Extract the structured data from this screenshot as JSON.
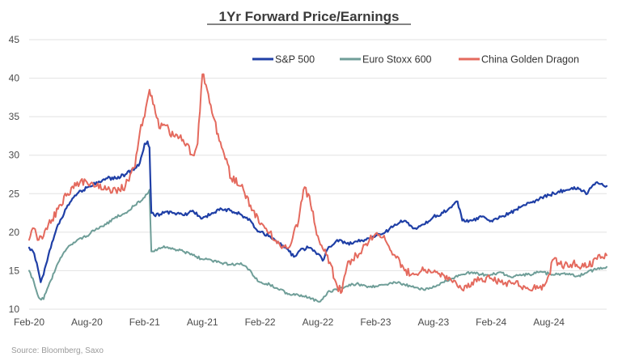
{
  "chart_data": {
    "type": "line",
    "title": "1Yr Forward Price/Earnings",
    "source": "Source: Bloomberg, Saxo",
    "xlabel": "",
    "ylabel": "",
    "ylim": [
      10,
      45
    ],
    "yticks": [
      "10",
      "15",
      "20",
      "25",
      "30",
      "35",
      "40",
      "45"
    ],
    "xticks": [
      "Feb-20",
      "Aug-20",
      "Feb-21",
      "Aug-21",
      "Feb-22",
      "Aug-22",
      "Feb-23",
      "Aug-23",
      "Feb-24",
      "Aug-24"
    ],
    "xlim_months": [
      0,
      60
    ],
    "grid": "horizontal",
    "legend_position": "top-right",
    "series": [
      {
        "name": "S&P 500",
        "color": "#1f3fa6",
        "points": [
          [
            0,
            18
          ],
          [
            0.4,
            17.5
          ],
          [
            0.8,
            16
          ],
          [
            1.2,
            13.5
          ],
          [
            1.5,
            14.5
          ],
          [
            2,
            17
          ],
          [
            2.5,
            19
          ],
          [
            3,
            21
          ],
          [
            3.5,
            22
          ],
          [
            4,
            23.5
          ],
          [
            5,
            25
          ],
          [
            6,
            25.8
          ],
          [
            7,
            26.5
          ],
          [
            8,
            27
          ],
          [
            9,
            27
          ],
          [
            10,
            27.5
          ],
          [
            11,
            28.3
          ],
          [
            11.5,
            29
          ],
          [
            12,
            31.5
          ],
          [
            12.3,
            31.8
          ],
          [
            12.5,
            31
          ],
          [
            12.7,
            22.5
          ],
          [
            13,
            22.2
          ],
          [
            14,
            22.5
          ],
          [
            15,
            22.5
          ],
          [
            16,
            22.2
          ],
          [
            17,
            22.8
          ],
          [
            18,
            21.8
          ],
          [
            19,
            22.5
          ],
          [
            20,
            23
          ],
          [
            21,
            22.8
          ],
          [
            22,
            22.3
          ],
          [
            23,
            21.5
          ],
          [
            23.5,
            20.5
          ],
          [
            24,
            20
          ],
          [
            25,
            19.5
          ],
          [
            26,
            18.5
          ],
          [
            27,
            17.5
          ],
          [
            27.5,
            16.8
          ],
          [
            28,
            17.5
          ],
          [
            29,
            18
          ],
          [
            30,
            17.2
          ],
          [
            30.5,
            16.3
          ],
          [
            31,
            17.8
          ],
          [
            32,
            19
          ],
          [
            33,
            18.5
          ],
          [
            34,
            18.8
          ],
          [
            35,
            19
          ],
          [
            36,
            19.5
          ],
          [
            37,
            20
          ],
          [
            38,
            21
          ],
          [
            39,
            21.5
          ],
          [
            40,
            20.5
          ],
          [
            41,
            21
          ],
          [
            42,
            22
          ],
          [
            43,
            22.5
          ],
          [
            44,
            23.5
          ],
          [
            44.5,
            24
          ],
          [
            45,
            21.5
          ],
          [
            46,
            21.5
          ],
          [
            47,
            22
          ],
          [
            48,
            21.5
          ],
          [
            49,
            22
          ],
          [
            50,
            22.5
          ],
          [
            51,
            23.2
          ],
          [
            52,
            23.8
          ],
          [
            53,
            24.3
          ],
          [
            54,
            24.8
          ],
          [
            55,
            25.3
          ],
          [
            56,
            25.5
          ],
          [
            57,
            25.8
          ],
          [
            58,
            25
          ],
          [
            58.5,
            26
          ],
          [
            59,
            26.5
          ],
          [
            59.5,
            26.3
          ],
          [
            60,
            26
          ]
        ]
      },
      {
        "name": "Euro Stoxx 600",
        "color": "#6f9e98",
        "points": [
          [
            0,
            15
          ],
          [
            0.5,
            13.5
          ],
          [
            1,
            11.5
          ],
          [
            1.5,
            11.3
          ],
          [
            2,
            13
          ],
          [
            3,
            16
          ],
          [
            4,
            18
          ],
          [
            5,
            19
          ],
          [
            6,
            19.5
          ],
          [
            7,
            20.5
          ],
          [
            8,
            21
          ],
          [
            9,
            22
          ],
          [
            10,
            22.5
          ],
          [
            11,
            23.5
          ],
          [
            12,
            24.5
          ],
          [
            12.5,
            25.5
          ],
          [
            12.7,
            17.5
          ],
          [
            13,
            17.5
          ],
          [
            14,
            18.2
          ],
          [
            15,
            17.8
          ],
          [
            16,
            17.5
          ],
          [
            17,
            17
          ],
          [
            18,
            16.5
          ],
          [
            19,
            16.3
          ],
          [
            20,
            16
          ],
          [
            21,
            15.8
          ],
          [
            22,
            16
          ],
          [
            23,
            15
          ],
          [
            23.5,
            14
          ],
          [
            24,
            13.5
          ],
          [
            25,
            13.2
          ],
          [
            26,
            12.5
          ],
          [
            27,
            12
          ],
          [
            28,
            11.8
          ],
          [
            29,
            11.5
          ],
          [
            30,
            11
          ],
          [
            30.5,
            11.3
          ],
          [
            31,
            12.2
          ],
          [
            32,
            12.5
          ],
          [
            33,
            13
          ],
          [
            34,
            13.3
          ],
          [
            35,
            13
          ],
          [
            36,
            13
          ],
          [
            37,
            13.2
          ],
          [
            38,
            13.5
          ],
          [
            39,
            13.2
          ],
          [
            40,
            12.8
          ],
          [
            41,
            12.5
          ],
          [
            42,
            13
          ],
          [
            43,
            13.5
          ],
          [
            44,
            14
          ],
          [
            45,
            14.5
          ],
          [
            46,
            14.8
          ],
          [
            47,
            14.5
          ],
          [
            48,
            14.5
          ],
          [
            49,
            14.8
          ],
          [
            50,
            14.2
          ],
          [
            51,
            14.5
          ],
          [
            52,
            14.5
          ],
          [
            53,
            14.8
          ],
          [
            54,
            14.6
          ],
          [
            55,
            14.6
          ],
          [
            56,
            14.5
          ],
          [
            57,
            14.3
          ],
          [
            58,
            14.8
          ],
          [
            59,
            15.2
          ],
          [
            60,
            15.5
          ]
        ]
      },
      {
        "name": "China Golden Dragon",
        "color": "#e46a5e",
        "points": [
          [
            0,
            19
          ],
          [
            0.5,
            20.5
          ],
          [
            1,
            19
          ],
          [
            1.5,
            19.5
          ],
          [
            2,
            21
          ],
          [
            3,
            23
          ],
          [
            4,
            25
          ],
          [
            5,
            26.5
          ],
          [
            6,
            26.5
          ],
          [
            7,
            26
          ],
          [
            8,
            25.5
          ],
          [
            9,
            25.5
          ],
          [
            10,
            26
          ],
          [
            10.5,
            27.5
          ],
          [
            11,
            28.5
          ],
          [
            11.5,
            33
          ],
          [
            12,
            35
          ],
          [
            12.5,
            38.5
          ],
          [
            13,
            36.5
          ],
          [
            13.5,
            33.5
          ],
          [
            14,
            34
          ],
          [
            15,
            32.5
          ],
          [
            16,
            32
          ],
          [
            17,
            30
          ],
          [
            17.5,
            31.5
          ],
          [
            18,
            40.5
          ],
          [
            18.5,
            38.5
          ],
          [
            19,
            35.5
          ],
          [
            20,
            31
          ],
          [
            21,
            27
          ],
          [
            22,
            26
          ],
          [
            23,
            23.5
          ],
          [
            24,
            21
          ],
          [
            25,
            20
          ],
          [
            26,
            18.5
          ],
          [
            27,
            18
          ],
          [
            28,
            21.5
          ],
          [
            28.5,
            25.5
          ],
          [
            29,
            25
          ],
          [
            30,
            19.5
          ],
          [
            31,
            17
          ],
          [
            32,
            13
          ],
          [
            32.5,
            12.3
          ],
          [
            33,
            15.5
          ],
          [
            34,
            17
          ],
          [
            35,
            18.5
          ],
          [
            36,
            19.8
          ],
          [
            37,
            19
          ],
          [
            38,
            17
          ],
          [
            39,
            15
          ],
          [
            40,
            14.5
          ],
          [
            41,
            15
          ],
          [
            42,
            14.8
          ],
          [
            43,
            14.5
          ],
          [
            44,
            13.5
          ],
          [
            45,
            12.5
          ],
          [
            46,
            13.5
          ],
          [
            47,
            14
          ],
          [
            48,
            14
          ],
          [
            49,
            13.5
          ],
          [
            50,
            13.5
          ],
          [
            51,
            13
          ],
          [
            52,
            12.5
          ],
          [
            53,
            12.8
          ],
          [
            53.5,
            13
          ],
          [
            54,
            14.5
          ],
          [
            54.5,
            16.5
          ],
          [
            55,
            16
          ],
          [
            56,
            15.5
          ],
          [
            56.5,
            16
          ],
          [
            57,
            15.5
          ],
          [
            58,
            15.5
          ],
          [
            59,
            16.5
          ],
          [
            59.5,
            16.8
          ],
          [
            60,
            17
          ]
        ]
      }
    ]
  }
}
